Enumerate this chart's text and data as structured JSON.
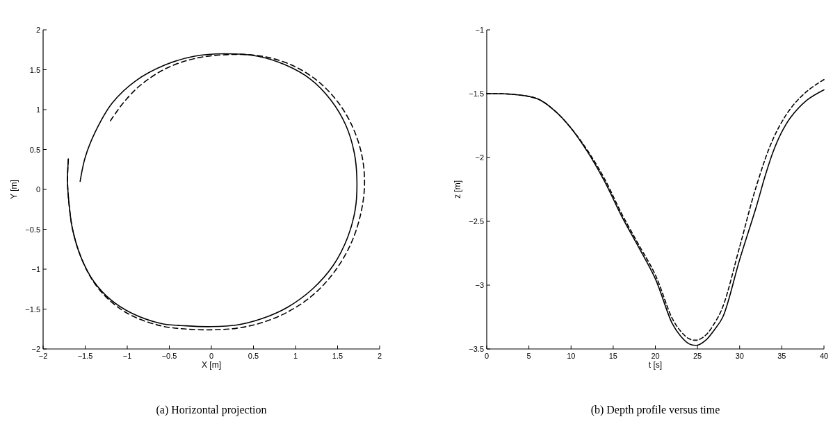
{
  "chart_data": [
    {
      "type": "line",
      "xlabel": "X [m]",
      "ylabel": "Y [m]",
      "xlim": [
        -2,
        2
      ],
      "ylim": [
        -2,
        2
      ],
      "xticks": [
        -2,
        -1.5,
        -1,
        -0.5,
        0,
        0.5,
        1,
        1.5,
        2
      ],
      "yticks": [
        -2,
        -1.5,
        -1,
        -0.5,
        0,
        0.5,
        1,
        1.5,
        2
      ],
      "grid": false,
      "marker": "none",
      "annotations": [
        "(a) Horizontal projection"
      ],
      "series": [
        {
          "color": "#000000",
          "line_style": "solid",
          "x": [
            -1.7,
            -1.71,
            -1.69,
            -1.65,
            -1.55,
            -1.4,
            -1.2,
            -0.95,
            -0.6,
            -0.3,
            0,
            0.3,
            0.6,
            0.9,
            1.2,
            1.45,
            1.62,
            1.71,
            1.73,
            1.7,
            1.6,
            1.42,
            1.18,
            0.88,
            0.55,
            0.15,
            -0.2,
            -0.55,
            -0.9,
            -1.18,
            -1.38,
            -1.5,
            -1.56
          ],
          "values": [
            0.38,
            0.1,
            -0.2,
            -0.5,
            -0.85,
            -1.15,
            -1.38,
            -1.55,
            -1.68,
            -1.71,
            -1.72,
            -1.7,
            -1.62,
            -1.48,
            -1.25,
            -0.95,
            -0.6,
            -0.25,
            0.1,
            0.45,
            0.8,
            1.12,
            1.38,
            1.56,
            1.67,
            1.7,
            1.67,
            1.56,
            1.36,
            1.08,
            0.72,
            0.4,
            0.1
          ]
        },
        {
          "color": "#000000",
          "line_style": "dashed",
          "x": [
            -1.7,
            -1.71,
            -1.69,
            -1.65,
            -1.55,
            -1.4,
            -1.2,
            -0.95,
            -0.6,
            -0.3,
            0,
            0.3,
            0.6,
            0.9,
            1.2,
            1.45,
            1.65,
            1.77,
            1.82,
            1.79,
            1.68,
            1.5,
            1.25,
            0.95,
            0.6,
            0.2,
            -0.2,
            -0.55,
            -0.85,
            -1.05,
            -1.2
          ],
          "values": [
            0.38,
            0.1,
            -0.2,
            -0.5,
            -0.85,
            -1.16,
            -1.4,
            -1.58,
            -1.71,
            -1.75,
            -1.76,
            -1.74,
            -1.67,
            -1.54,
            -1.33,
            -1.05,
            -0.7,
            -0.33,
            0.05,
            0.42,
            0.78,
            1.1,
            1.37,
            1.56,
            1.67,
            1.69,
            1.64,
            1.51,
            1.3,
            1.08,
            0.86
          ]
        }
      ]
    },
    {
      "type": "line",
      "xlabel": "t [s]",
      "ylabel": "z [m]",
      "xlim": [
        0,
        40
      ],
      "ylim": [
        -3.5,
        -1
      ],
      "xticks": [
        0,
        5,
        10,
        15,
        20,
        25,
        30,
        35,
        40
      ],
      "yticks": [
        -3.5,
        -3,
        -2.5,
        -2,
        -1.5,
        -1
      ],
      "grid": false,
      "marker": "none",
      "annotations": [
        "(b) Depth profile versus time"
      ],
      "series": [
        {
          "color": "#000000",
          "line_style": "solid",
          "x": [
            0,
            3,
            6,
            8,
            10,
            12,
            14,
            16,
            18,
            20,
            22,
            23,
            24,
            25,
            26,
            27,
            28,
            30,
            32,
            33,
            34,
            35,
            36,
            38,
            40
          ],
          "values": [
            -1.5,
            -1.505,
            -1.54,
            -1.63,
            -1.77,
            -1.96,
            -2.19,
            -2.46,
            -2.7,
            -2.95,
            -3.3,
            -3.4,
            -3.46,
            -3.47,
            -3.43,
            -3.35,
            -3.25,
            -2.8,
            -2.38,
            -2.15,
            -1.95,
            -1.8,
            -1.69,
            -1.55,
            -1.47
          ]
        },
        {
          "color": "#000000",
          "line_style": "dashed",
          "x": [
            0,
            3,
            6,
            8,
            10,
            12,
            14,
            16,
            18,
            20,
            22,
            23,
            24,
            25,
            26,
            27,
            28,
            30,
            32,
            34,
            36,
            38,
            40
          ],
          "values": [
            -1.5,
            -1.505,
            -1.54,
            -1.63,
            -1.77,
            -1.95,
            -2.17,
            -2.44,
            -2.68,
            -2.92,
            -3.26,
            -3.36,
            -3.42,
            -3.43,
            -3.39,
            -3.3,
            -3.17,
            -2.7,
            -2.22,
            -1.85,
            -1.62,
            -1.48,
            -1.39
          ]
        }
      ]
    }
  ]
}
